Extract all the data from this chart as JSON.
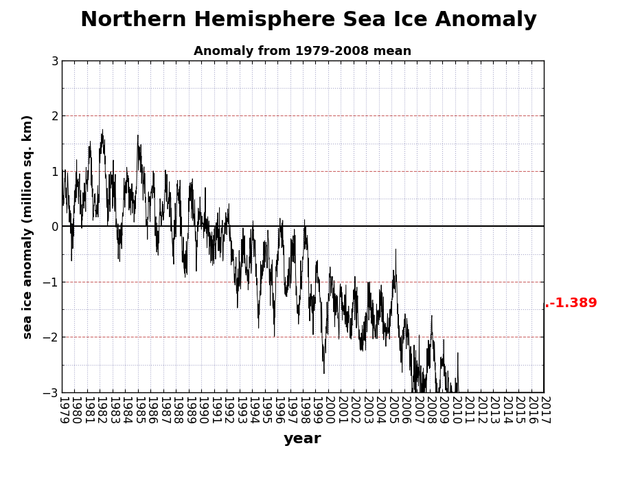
{
  "title": "Northern Hemisphere Sea Ice Anomaly",
  "subtitle": "Anomaly from 1979-2008 mean",
  "xlabel": "year",
  "ylabel": "sea ice anomaly (million sq. km)",
  "ylim": [
    -3,
    3
  ],
  "xlim": [
    1979,
    2017
  ],
  "last_value": -1.389,
  "last_value_color": "#ff0000",
  "line_color": "#000000",
  "background_color": "#ffffff",
  "grid_color_major": "#cc6666",
  "grid_color_minor": "#aaaacc",
  "zero_line_color": "#000000",
  "title_fontsize": 22,
  "subtitle_fontsize": 13,
  "xlabel_fontsize": 16,
  "ylabel_fontsize": 13,
  "tick_fontsize": 12
}
